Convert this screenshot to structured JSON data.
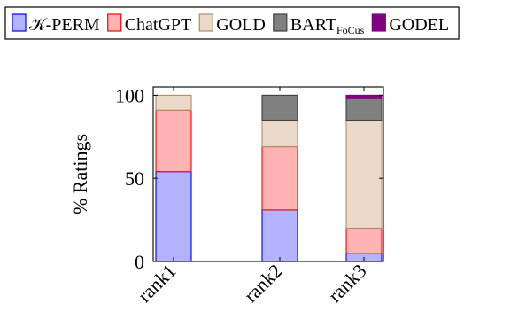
{
  "chart_data": {
    "type": "bar",
    "stacked": true,
    "categories": [
      "rank1",
      "rank2",
      "rank3"
    ],
    "series": [
      {
        "name": "𝒦-PERM",
        "fill": "#b3b3ff",
        "stroke": "#0000ff",
        "values": [
          54,
          31,
          5
        ]
      },
      {
        "name": "ChatGPT",
        "fill": "#ffb3b3",
        "stroke": "#ff0000",
        "values": [
          37,
          38,
          15
        ]
      },
      {
        "name": "GOLD",
        "fill": "#ead9c8",
        "stroke": "#b08c6c",
        "values": [
          9,
          16,
          65
        ]
      },
      {
        "name": "BARTFoCus",
        "fill": "#808080",
        "stroke": "#404040",
        "values": [
          0,
          15,
          13
        ]
      },
      {
        "name": "GODEL",
        "fill": "#800080",
        "stroke": "#800080",
        "values": [
          0,
          0,
          2
        ]
      }
    ],
    "legend": {
      "position": "top",
      "entries": [
        {
          "main": "𝒦-PERM",
          "sub": ""
        },
        {
          "main": "ChatGPT",
          "sub": ""
        },
        {
          "main": "GOLD",
          "sub": ""
        },
        {
          "main": "BART",
          "sub": "FoCus"
        },
        {
          "main": "GODEL",
          "sub": ""
        }
      ]
    },
    "ylabel": "% Ratings",
    "ylim": [
      0,
      105
    ],
    "yticks": [
      "0",
      "50",
      "100"
    ],
    "ytick_values": [
      0,
      50,
      100
    ],
    "grid": false
  }
}
